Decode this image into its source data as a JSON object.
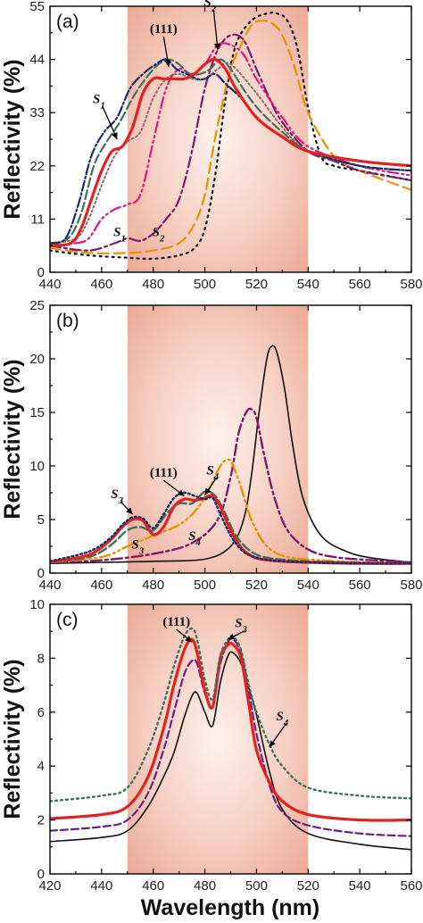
{
  "xlabel": "Wavelength (nm)",
  "chart_data": [
    {
      "panel": "(a)",
      "type": "line",
      "ylabel": "Reflectivity (%)",
      "xlim": [
        440,
        580
      ],
      "ylim": [
        0,
        55
      ],
      "xticks": [
        440,
        460,
        480,
        500,
        520,
        540,
        560,
        580
      ],
      "yticks": [
        0,
        11,
        22,
        33,
        44,
        55
      ],
      "shaded_band": [
        470,
        540
      ],
      "series": [
        {
          "color": "#111111",
          "dash": "2,5",
          "width": 2.2,
          "x": [
            440,
            455,
            470,
            480,
            490,
            496,
            500,
            504,
            508,
            512,
            518,
            524,
            528,
            532,
            536,
            540,
            545,
            550,
            560,
            580
          ],
          "y": [
            4.5,
            3.5,
            3,
            2.8,
            3.5,
            5,
            9,
            20,
            36,
            47,
            52,
            53.5,
            53.5,
            52,
            46,
            34,
            24,
            22,
            21,
            19
          ]
        },
        {
          "color": "#e69100",
          "dash": "12,6",
          "width": 2.2,
          "x": [
            440,
            455,
            470,
            480,
            490,
            496,
            500,
            503,
            506,
            510,
            514,
            518,
            522,
            526,
            530,
            535,
            540,
            550,
            560,
            580
          ],
          "y": [
            5,
            4,
            4,
            4.5,
            6,
            10,
            16,
            25,
            33,
            42,
            47,
            51,
            52,
            51.5,
            49,
            42,
            33,
            24,
            21,
            17
          ]
        },
        {
          "color": "#7b1a6a",
          "dash": "12,4,3,4",
          "width": 2.2,
          "x": [
            440,
            455,
            465,
            470,
            475,
            480,
            485,
            490,
            495,
            500,
            505,
            510,
            515,
            520,
            525,
            530,
            540,
            550,
            560,
            580
          ],
          "y": [
            5.5,
            4.5,
            6,
            7,
            6.5,
            8,
            11,
            15,
            25,
            38,
            46,
            49,
            48,
            42,
            36,
            31,
            25,
            23,
            21,
            19
          ]
        },
        {
          "color": "#e0167a",
          "dash": "12,4,2,4,2,4",
          "width": 2.2,
          "x": [
            440,
            450,
            455,
            460,
            465,
            470,
            475,
            480,
            485,
            490,
            495,
            500,
            505,
            510,
            515,
            520,
            530,
            540,
            560,
            580
          ],
          "y": [
            5.5,
            6,
            7,
            11,
            13,
            14,
            16,
            27,
            38,
            42,
            41,
            43,
            47,
            47,
            45,
            40,
            32,
            26,
            22,
            20
          ]
        },
        {
          "color": "#8a6a6a",
          "dash": "2,3",
          "width": 2.0,
          "x": [
            440,
            450,
            455,
            460,
            465,
            470,
            475,
            480,
            485,
            490,
            495,
            500,
            505,
            510,
            520,
            530,
            540,
            560,
            580
          ],
          "y": [
            6,
            7,
            11,
            18,
            24,
            27,
            29,
            36,
            40,
            41,
            40,
            40,
            42,
            43,
            37,
            30,
            25,
            22,
            21
          ]
        },
        {
          "color": "#3f6f5a",
          "dash": "10,4",
          "width": 2.2,
          "x": [
            440,
            447,
            452,
            457,
            462,
            467,
            472,
            477,
            482,
            486,
            490,
            494,
            498,
            502,
            506,
            510,
            516,
            522,
            530,
            540,
            560,
            580
          ],
          "y": [
            6,
            7,
            12,
            22,
            27,
            31,
            36,
            40,
            43,
            44,
            43,
            41,
            41,
            42,
            44,
            42,
            37,
            33,
            29,
            25,
            22,
            21
          ]
        },
        {
          "color": "#1a2b6b",
          "dash": "11,3,2,3",
          "width": 2.2,
          "x": [
            440,
            446,
            451,
            456,
            461,
            466,
            471,
            476,
            481,
            485,
            489,
            493,
            497,
            500,
            504,
            508,
            514,
            520,
            530,
            540,
            560,
            580
          ],
          "y": [
            6,
            7,
            14,
            24,
            29,
            32,
            38,
            41,
            43,
            44,
            42,
            41,
            40,
            40,
            41,
            39,
            36,
            32,
            28,
            25,
            22,
            21
          ]
        },
        {
          "color": "#e02222",
          "dash": "",
          "width": 3.2,
          "x": [
            440,
            448,
            452,
            456,
            460,
            464,
            468,
            472,
            476,
            480,
            484,
            488,
            492,
            496,
            500,
            504,
            508,
            512,
            520,
            530,
            540,
            560,
            580
          ],
          "y": [
            5.5,
            6,
            9,
            15,
            21,
            25,
            26,
            30,
            37,
            40,
            40,
            40,
            40,
            41,
            43,
            44,
            42,
            38,
            32,
            28,
            25,
            23,
            22
          ]
        }
      ],
      "annotations": [
        {
          "text": "(111)",
          "style": "plain",
          "x": 484,
          "y": 49.5,
          "ax": 486,
          "ay": 42.5
        },
        {
          "text": "S",
          "sub": "2",
          "x": 502,
          "y": 55,
          "ax": 505,
          "ay": 46
        },
        {
          "text": "S",
          "sub": "1",
          "x": 459,
          "y": 35,
          "ax": 466,
          "ay": 27.5
        },
        {
          "text": "S",
          "sub": "1",
          "x": 467,
          "y": 7.5,
          "ax": null,
          "ay": null
        },
        {
          "text": "S",
          "sub": "2",
          "x": 482,
          "y": 7.5,
          "ax": null,
          "ay": null
        }
      ]
    },
    {
      "panel": "(b)",
      "type": "line",
      "ylabel": "Reflectivity (%)",
      "xlim": [
        440,
        580
      ],
      "ylim": [
        0,
        25
      ],
      "xticks": [
        440,
        460,
        480,
        500,
        520,
        540,
        560,
        580
      ],
      "yticks": [
        0,
        5,
        10,
        15,
        20,
        25
      ],
      "shaded_band": [
        470,
        540
      ],
      "series": [
        {
          "color": "#111111",
          "dash": "",
          "width": 1.6,
          "x": [
            440,
            460,
            480,
            500,
            510,
            515,
            518,
            521,
            524,
            526,
            528,
            531,
            534,
            538,
            545,
            555,
            565,
            580
          ],
          "y": [
            0.9,
            1.0,
            1.1,
            1.3,
            2.5,
            5,
            9,
            15,
            20,
            21.2,
            20.5,
            17,
            12,
            7,
            3.5,
            2,
            1.4,
            1.0
          ]
        },
        {
          "color": "#7b1a6a",
          "dash": "12,4,3,4",
          "width": 2.4,
          "x": [
            440,
            460,
            480,
            495,
            505,
            510,
            513,
            516,
            518,
            520,
            523,
            527,
            532,
            540,
            550,
            565,
            580
          ],
          "y": [
            1.0,
            1.2,
            1.8,
            2.8,
            5,
            9,
            13,
            15,
            15.3,
            14.5,
            11,
            7,
            4,
            2.2,
            1.5,
            1.2,
            1.0
          ]
        },
        {
          "color": "#e69100",
          "dash": "12,4,2,4,2,4",
          "width": 2.4,
          "x": [
            440,
            460,
            470,
            480,
            490,
            497,
            502,
            506,
            509,
            511,
            514,
            518,
            524,
            532,
            545,
            560,
            580
          ],
          "y": [
            1.0,
            1.5,
            2.5,
            3.5,
            4.5,
            6,
            8,
            10,
            10.6,
            10,
            8,
            5,
            2.5,
            1.5,
            1.2,
            1.0,
            0.9
          ]
        },
        {
          "color": "#3f6f5a",
          "dash": "10,4",
          "width": 2.4,
          "x": [
            440,
            455,
            463,
            470,
            475,
            480,
            485,
            490,
            495,
            500,
            504,
            508,
            512,
            518,
            525,
            540,
            560,
            580
          ],
          "y": [
            1.0,
            1.5,
            2.5,
            4,
            4.3,
            4,
            5.5,
            6.5,
            6.5,
            7.6,
            7.2,
            5.5,
            3.5,
            2,
            1.4,
            1.1,
            1.0,
            0.9
          ]
        },
        {
          "color": "#e02222",
          "dash": "",
          "width": 3.2,
          "x": [
            440,
            455,
            463,
            468,
            472,
            476,
            480,
            484,
            488,
            492,
            496,
            500,
            503,
            506,
            510,
            514,
            518,
            522,
            530,
            540,
            560,
            580
          ],
          "y": [
            1.0,
            1.7,
            3,
            4.3,
            5,
            4.9,
            3.6,
            4.3,
            6.2,
            6.9,
            6.8,
            7.0,
            7.2,
            6.2,
            4,
            2.4,
            1.6,
            1.3,
            1.1,
            1.0,
            0.9,
            0.9
          ]
        },
        {
          "color": "#1a2b6b",
          "dash": "2,3",
          "width": 2.4,
          "x": [
            440,
            455,
            463,
            468,
            472,
            476,
            480,
            484,
            488,
            492,
            496,
            500,
            503,
            506,
            510,
            514,
            518,
            525,
            540,
            560,
            580
          ],
          "y": [
            1.1,
            2,
            3.2,
            4.5,
            5.2,
            5.1,
            4.2,
            5.5,
            7,
            7.5,
            7.2,
            6.9,
            7.0,
            5.5,
            3.5,
            2.2,
            1.6,
            1.2,
            1.0,
            0.9,
            0.9
          ]
        }
      ],
      "annotations": [
        {
          "text": "(111)",
          "style": "plain",
          "x": 484,
          "y": 9.0,
          "ax": 492,
          "ay": 7.2
        },
        {
          "text": "S",
          "sub": "3",
          "x": 466,
          "y": 7.0,
          "ax": 472,
          "ay": 5.5
        },
        {
          "text": "S",
          "sub": "4",
          "x": 503,
          "y": 9.2,
          "ax": 500,
          "ay": 7.3
        },
        {
          "text": "S",
          "sub": "3",
          "x": 474,
          "y": 2.3,
          "ax": null,
          "ay": null
        },
        {
          "text": "S",
          "sub": "4",
          "x": 496,
          "y": 3.1,
          "ax": null,
          "ay": null
        }
      ]
    },
    {
      "panel": "(c)",
      "type": "line",
      "ylabel": "Reflectivity (%)",
      "xlim": [
        420,
        560
      ],
      "ylim": [
        0,
        10
      ],
      "xticks": [
        420,
        440,
        460,
        480,
        500,
        520,
        540,
        560
      ],
      "yticks": [
        0,
        2,
        4,
        6,
        8,
        10
      ],
      "shaded_band": [
        450,
        520
      ],
      "series": [
        {
          "color": "#111111",
          "dash": "",
          "width": 1.6,
          "x": [
            420,
            440,
            450,
            458,
            464,
            468,
            472,
            475,
            477,
            480,
            483,
            486,
            489,
            491,
            494,
            497,
            500,
            505,
            510,
            520,
            540,
            560
          ],
          "y": [
            1.2,
            1.35,
            1.6,
            2.5,
            3.6,
            4.5,
            5.8,
            6.6,
            6.7,
            6.0,
            5.5,
            7.1,
            8.1,
            8.2,
            7.8,
            6.9,
            5.9,
            3.8,
            2.4,
            1.5,
            1.1,
            0.9
          ]
        },
        {
          "color": "#6a2080",
          "dash": "8,4",
          "width": 2.2,
          "x": [
            420,
            440,
            450,
            458,
            464,
            468,
            472,
            475,
            477,
            480,
            483,
            486,
            489,
            491,
            494,
            497,
            500,
            505,
            510,
            520,
            540,
            560
          ],
          "y": [
            1.6,
            1.75,
            2.0,
            3.0,
            4.6,
            6.0,
            7.4,
            7.9,
            7.8,
            6.7,
            6.2,
            7.8,
            8.6,
            8.7,
            8.2,
            6.8,
            5.2,
            3.3,
            2.3,
            1.8,
            1.5,
            1.4
          ]
        },
        {
          "color": "#e02222",
          "dash": "",
          "width": 3.2,
          "x": [
            420,
            440,
            450,
            458,
            464,
            468,
            472,
            475,
            477,
            480,
            483,
            486,
            489,
            491,
            494,
            497,
            500,
            505,
            510,
            520,
            540,
            560
          ],
          "y": [
            2.05,
            2.2,
            2.5,
            3.6,
            5.4,
            7.0,
            8.3,
            8.7,
            8.2,
            6.8,
            6.2,
            8.0,
            8.5,
            8.5,
            8.0,
            6.3,
            4.6,
            3.4,
            2.7,
            2.2,
            2.0,
            2.0
          ]
        },
        {
          "color": "#3f6f5a",
          "dash": "2,4",
          "width": 2.4,
          "x": [
            420,
            440,
            450,
            458,
            464,
            468,
            472,
            475,
            477,
            480,
            483,
            486,
            489,
            491,
            494,
            497,
            500,
            505,
            510,
            520,
            540,
            560
          ],
          "y": [
            2.7,
            2.9,
            3.2,
            4.6,
            6.3,
            7.7,
            8.8,
            9.1,
            8.7,
            7.2,
            6.5,
            8.1,
            8.7,
            8.8,
            8.3,
            7.0,
            6.0,
            4.8,
            4.0,
            3.2,
            2.9,
            2.8
          ]
        }
      ],
      "annotations": [
        {
          "text": "(111)",
          "style": "plain",
          "x": 469,
          "y": 9.2,
          "ax": 475,
          "ay": 8.6
        },
        {
          "text": "S",
          "sub": "3",
          "x": 494,
          "y": 9.15,
          "ax": 489,
          "ay": 8.7
        },
        {
          "text": "S",
          "sub": "4",
          "x": 510,
          "y": 5.7,
          "ax": 505,
          "ay": 4.7
        }
      ]
    }
  ]
}
